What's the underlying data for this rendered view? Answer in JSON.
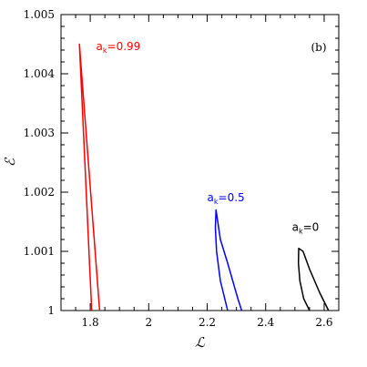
{
  "chart_data": {
    "type": "line",
    "title": "",
    "panel_label": "(b)",
    "xlabel": "ℒ",
    "ylabel": "ℰ",
    "xlim": [
      1.7,
      2.65
    ],
    "ylim": [
      1.0,
      1.005
    ],
    "grid": false,
    "x_ticks": [
      1.8,
      2.0,
      2.2,
      2.4,
      2.6
    ],
    "x_tick_labels": [
      "1.8",
      "2",
      "2.2",
      "2.4",
      "2.6"
    ],
    "y_ticks": [
      1.0,
      1.001,
      1.002,
      1.003,
      1.004,
      1.005
    ],
    "y_tick_labels": [
      "1",
      "1.001",
      "1.002",
      "1.003",
      "1.004",
      "1.005"
    ],
    "series": [
      {
        "color": "#ff0000",
        "label_main": "a",
        "label_sub": "k",
        "label_rest": "=0.99",
        "label_anchor": [
          1.82,
          1.0044
        ],
        "x": [
          1.805,
          1.763,
          1.832
        ],
        "y": [
          1.0,
          1.0045,
          1.0
        ]
      },
      {
        "color": "#0000ff",
        "label_main": "a",
        "label_sub": "k",
        "label_rest": "=0.5",
        "label_anchor": [
          2.2,
          1.00185
        ],
        "x": [
          2.27,
          2.245,
          2.232,
          2.228,
          2.23,
          2.245,
          2.27,
          2.305,
          2.318
        ],
        "y": [
          1.0,
          1.0005,
          1.001,
          1.0014,
          1.0017,
          1.0012,
          1.0008,
          1.0002,
          1.0
        ]
      },
      {
        "color": "#000000",
        "label_main": "a",
        "label_sub": "k",
        "label_rest": "=0",
        "label_anchor": [
          2.49,
          1.00135
        ],
        "x": [
          2.55,
          2.53,
          2.517,
          2.512,
          2.513,
          2.528,
          2.55,
          2.585,
          2.615
        ],
        "y": [
          1.0,
          1.0002,
          1.0005,
          1.0008,
          1.00105,
          1.001,
          1.0007,
          1.0003,
          1.0
        ]
      }
    ]
  }
}
